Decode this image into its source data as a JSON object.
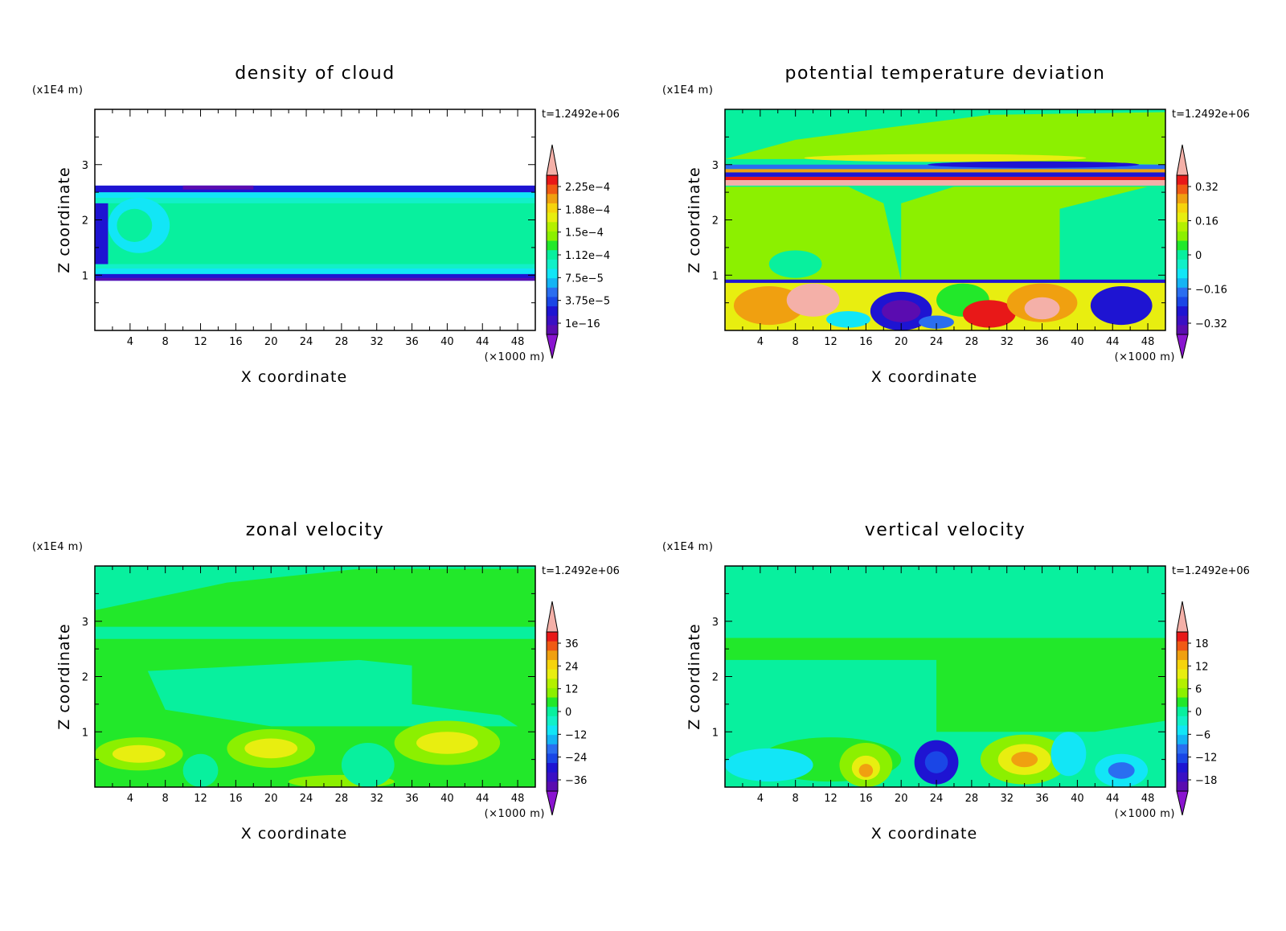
{
  "chart_data": [
    {
      "type": "heatmap",
      "title": "density of cloud",
      "xlabel": "X coordinate",
      "ylabel": "Z coordinate",
      "x_unit": "(×1000 m)",
      "y_unit": "(x1E4 m)",
      "time_label": "t=1.2492e+06",
      "xlim": [
        0,
        50
      ],
      "ylim": [
        0,
        4
      ],
      "x_ticks": [
        "4",
        "8",
        "12",
        "16",
        "20",
        "24",
        "28",
        "32",
        "36",
        "40",
        "44",
        "48"
      ],
      "y_ticks": [
        "1",
        "2",
        "3"
      ],
      "colorbar_ticks": [
        "2.25e−4",
        "1.88e−4",
        "1.5e−4",
        "1.12e−4",
        "7.5e−5",
        "3.75e−5",
        "1e−16"
      ],
      "field": "cloud"
    },
    {
      "type": "heatmap",
      "title": "potential temperature deviation",
      "xlabel": "X coordinate",
      "ylabel": "Z coordinate",
      "x_unit": "(×1000 m)",
      "y_unit": "(x1E4 m)",
      "time_label": "t=1.2492e+06",
      "xlim": [
        0,
        50
      ],
      "ylim": [
        0,
        4
      ],
      "x_ticks": [
        "4",
        "8",
        "12",
        "16",
        "20",
        "24",
        "28",
        "32",
        "36",
        "40",
        "44",
        "48"
      ],
      "y_ticks": [
        "1",
        "2",
        "3"
      ],
      "colorbar_ticks": [
        "0.32",
        "0.16",
        "0",
        "−0.16",
        "−0.32"
      ],
      "field": "theta"
    },
    {
      "type": "heatmap",
      "title": "zonal velocity",
      "xlabel": "X coordinate",
      "ylabel": "Z coordinate",
      "x_unit": "(×1000 m)",
      "y_unit": "(x1E4 m)",
      "time_label": "t=1.2492e+06",
      "xlim": [
        0,
        50
      ],
      "ylim": [
        0,
        4
      ],
      "x_ticks": [
        "4",
        "8",
        "12",
        "16",
        "20",
        "24",
        "28",
        "32",
        "36",
        "40",
        "44",
        "48"
      ],
      "y_ticks": [
        "1",
        "2",
        "3"
      ],
      "colorbar_ticks": [
        "36",
        "24",
        "12",
        "0",
        "−12",
        "−24",
        "−36"
      ],
      "field": "zonal"
    },
    {
      "type": "heatmap",
      "title": "vertical velocity",
      "xlabel": "X coordinate",
      "ylabel": "Z coordinate",
      "x_unit": "(×1000 m)",
      "y_unit": "(x1E4 m)",
      "time_label": "t=1.2492e+06",
      "xlim": [
        0,
        50
      ],
      "ylim": [
        0,
        4
      ],
      "x_ticks": [
        "4",
        "8",
        "12",
        "16",
        "20",
        "24",
        "28",
        "32",
        "36",
        "40",
        "44",
        "48"
      ],
      "y_ticks": [
        "1",
        "2",
        "3"
      ],
      "colorbar_ticks": [
        "18",
        "12",
        "6",
        "0",
        "−6",
        "−12",
        "−18"
      ],
      "field": "vertical"
    }
  ],
  "colors": {
    "purple": "#5a0cb0",
    "dark_blue": "#1e14d2",
    "blue": "#2a6ef0",
    "cyan": "#12e6f6",
    "sea_green": "#08f09e",
    "green": "#22e82a",
    "lime": "#8cf000",
    "yellow": "#e8ee10",
    "orange": "#f0a010",
    "red": "#e81818",
    "pink": "#f4b0a8"
  }
}
